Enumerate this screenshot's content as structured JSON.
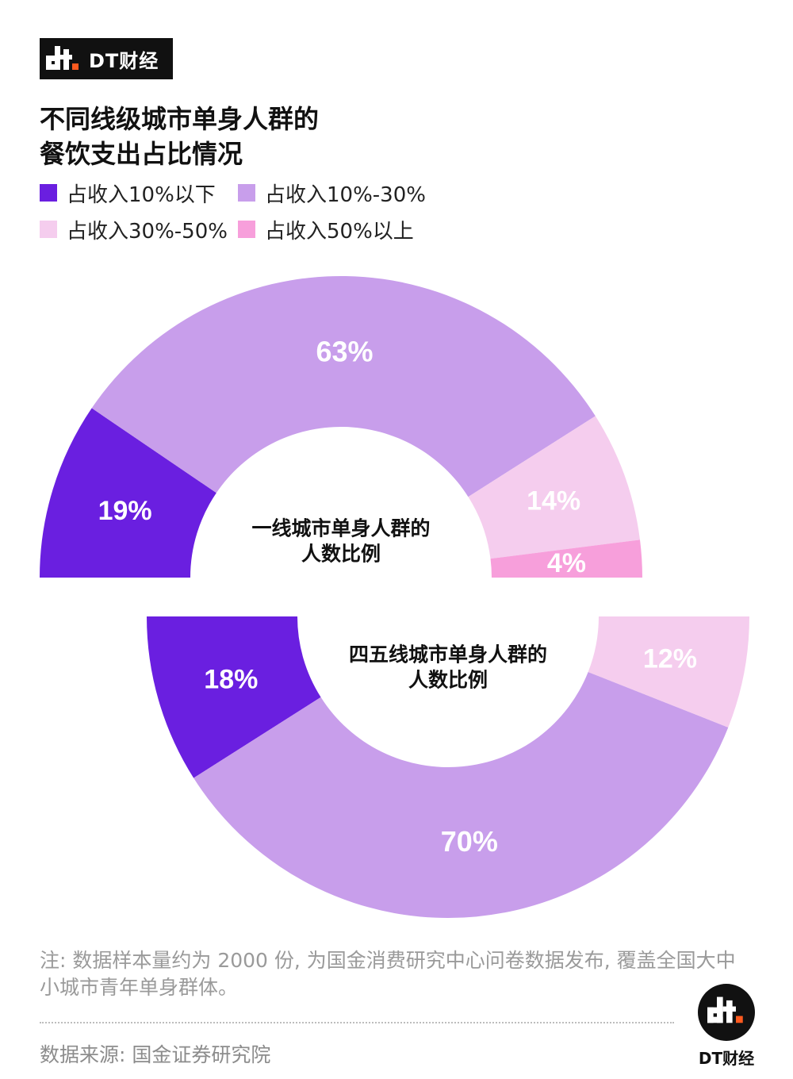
{
  "brand": {
    "name": "DT财经",
    "logo_icon": "dt-logo-icon"
  },
  "title": {
    "line1": "不同线级城市单身人群的",
    "line2": "餐饮支出占比情况"
  },
  "legend": [
    {
      "label": "占收入10%以下",
      "color": "#6a1fe0"
    },
    {
      "label": "占收入10%-30%",
      "color": "#c89eeb"
    },
    {
      "label": "占收入30%-50%",
      "color": "#f5cdee"
    },
    {
      "label": "占收入50%以上",
      "color": "#f79fdb"
    }
  ],
  "chart_data": [
    {
      "type": "pie",
      "variant": "half-donut-top",
      "center_label": [
        "一线城市单身人群的",
        "人数比例"
      ],
      "categories": [
        "占收入10%以下",
        "占收入10%-30%",
        "占收入30%-50%",
        "占收入50%以上"
      ],
      "values": [
        19,
        63,
        14,
        4
      ],
      "labels": [
        "19%",
        "63%",
        "14%",
        "4%"
      ],
      "colors": [
        "#6a1fe0",
        "#c89eeb",
        "#f5cdee",
        "#f79fdb"
      ],
      "label_colors": [
        "#ffffff",
        "#ffffff",
        "#ffffff",
        "#ffffff"
      ]
    },
    {
      "type": "pie",
      "variant": "half-donut-bottom",
      "center_label": [
        "四五线城市单身人群的",
        "人数比例"
      ],
      "categories": [
        "占收入10%以下",
        "占收入10%-30%",
        "占收入30%-50%"
      ],
      "values": [
        18,
        70,
        12
      ],
      "labels": [
        "18%",
        "70%",
        "12%"
      ],
      "colors": [
        "#6a1fe0",
        "#c89eeb",
        "#f5cdee"
      ],
      "label_colors": [
        "#ffffff",
        "#ffffff",
        "#ffffff"
      ]
    }
  ],
  "note": "注: 数据样本量约为 2000 份, 为国金消费研究中心问卷数据发布, 覆盖全国大中小城市青年单身群体。",
  "source": "数据来源: 国金证券研究院",
  "footer": {
    "brand": "DT财经"
  }
}
